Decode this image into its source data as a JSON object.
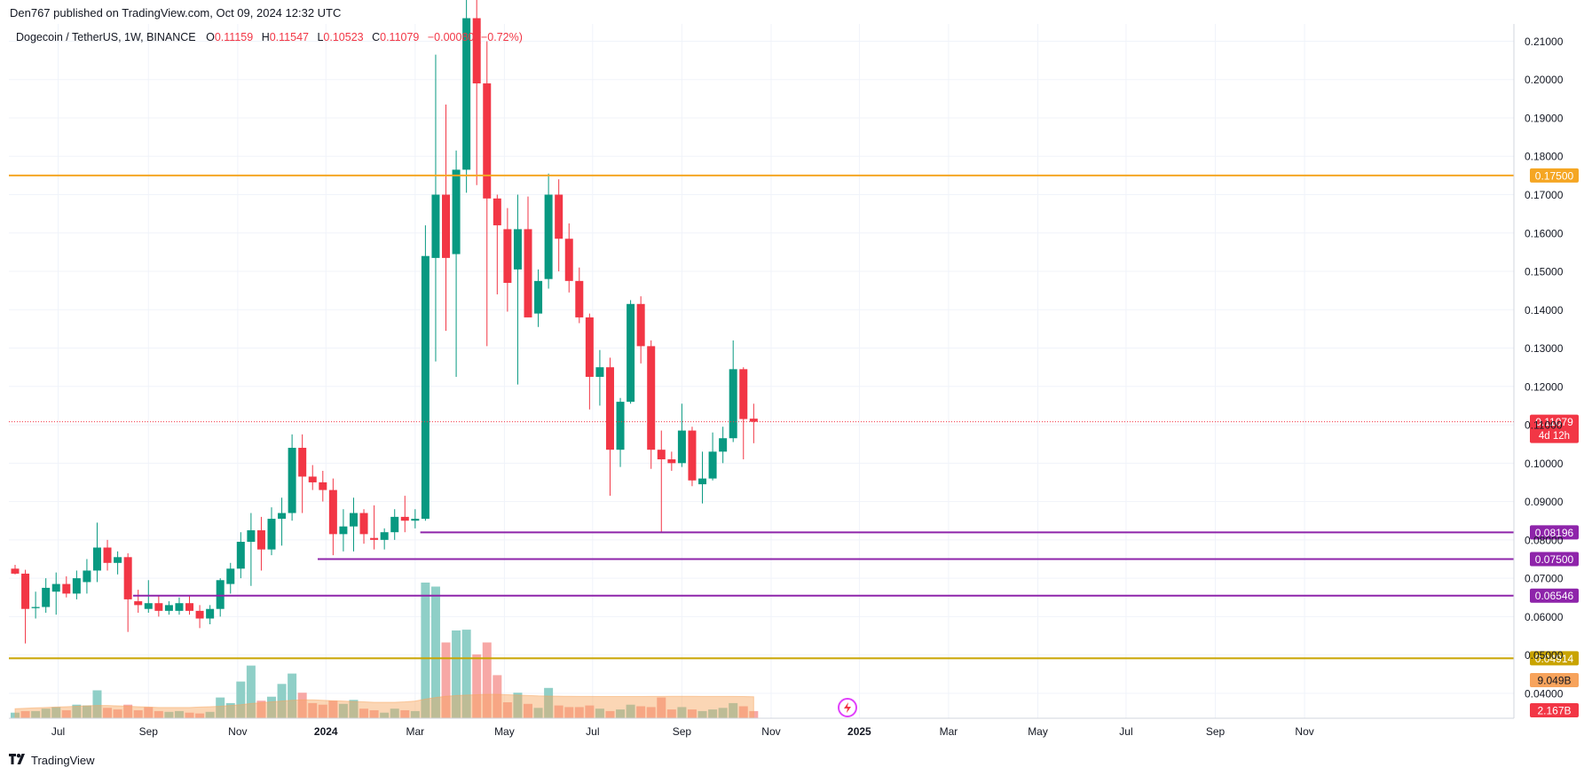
{
  "header": {
    "publisher": "Den767 published on TradingView.com, Oct 09, 2024 12:32 UTC"
  },
  "legend": {
    "symbol": "Dogecoin / TetherUS, 1W, BINANCE",
    "o_label": "O",
    "o_value": "0.11159",
    "h_label": "H",
    "h_value": "0.11547",
    "l_label": "L",
    "l_value": "0.10523",
    "c_label": "C",
    "c_value": "0.11079",
    "change": "−0.00080 (−0.72%)"
  },
  "footer": {
    "brand": "TradingView"
  },
  "chart_data": {
    "type": "candlestick",
    "interval": "1W",
    "symbol": "Dogecoin / TetherUS",
    "exchange": "BINANCE",
    "ylim": [
      0.0335,
      0.2145
    ],
    "y_ticks": [
      0.04,
      0.05,
      0.06,
      0.07,
      0.08,
      0.09,
      0.1,
      0.11,
      0.12,
      0.13,
      0.14,
      0.15,
      0.16,
      0.17,
      0.18,
      0.19,
      0.2,
      0.21
    ],
    "y_tick_labels": [
      "0.04000",
      "0.05000",
      "0.06000",
      "0.07000",
      "0.08000",
      "0.09000",
      "0.10000",
      "0.11000",
      "0.12000",
      "0.13000",
      "0.14000",
      "0.15000",
      "0.16000",
      "0.17000",
      "0.18000",
      "0.19000",
      "0.20000",
      "0.21000"
    ],
    "x_labels": [
      {
        "label": "Jul",
        "week": 4.2
      },
      {
        "label": "Sep",
        "week": 13
      },
      {
        "label": "Nov",
        "week": 21.7
      },
      {
        "label": "2024",
        "week": 30.3,
        "bold": true
      },
      {
        "label": "Mar",
        "week": 39
      },
      {
        "label": "May",
        "week": 47.7
      },
      {
        "label": "Jul",
        "week": 56.3
      },
      {
        "label": "Sep",
        "week": 65
      },
      {
        "label": "Nov",
        "week": 73.7
      },
      {
        "label": "2025",
        "week": 82.3,
        "bold": true
      },
      {
        "label": "Mar",
        "week": 91
      },
      {
        "label": "May",
        "week": 99.7
      },
      {
        "label": "Jul",
        "week": 108.3
      },
      {
        "label": "Sep",
        "week": 117
      },
      {
        "label": "Nov",
        "week": 125.7
      }
    ],
    "candles": [
      {
        "o": 0.0725,
        "h": 0.0735,
        "l": 0.071,
        "c": 0.0712
      },
      {
        "o": 0.0712,
        "h": 0.0722,
        "l": 0.053,
        "c": 0.062
      },
      {
        "o": 0.0622,
        "h": 0.0665,
        "l": 0.0595,
        "c": 0.0625
      },
      {
        "o": 0.0625,
        "h": 0.07,
        "l": 0.061,
        "c": 0.0675
      },
      {
        "o": 0.0665,
        "h": 0.0715,
        "l": 0.0605,
        "c": 0.0685
      },
      {
        "o": 0.0685,
        "h": 0.0705,
        "l": 0.065,
        "c": 0.066
      },
      {
        "o": 0.066,
        "h": 0.072,
        "l": 0.0645,
        "c": 0.07
      },
      {
        "o": 0.069,
        "h": 0.075,
        "l": 0.066,
        "c": 0.072
      },
      {
        "o": 0.072,
        "h": 0.0845,
        "l": 0.069,
        "c": 0.078
      },
      {
        "o": 0.078,
        "h": 0.08,
        "l": 0.072,
        "c": 0.074
      },
      {
        "o": 0.074,
        "h": 0.077,
        "l": 0.071,
        "c": 0.0755
      },
      {
        "o": 0.0755,
        "h": 0.0765,
        "l": 0.056,
        "c": 0.0645
      },
      {
        "o": 0.064,
        "h": 0.067,
        "l": 0.061,
        "c": 0.063
      },
      {
        "o": 0.062,
        "h": 0.0695,
        "l": 0.061,
        "c": 0.0635
      },
      {
        "o": 0.0635,
        "h": 0.0655,
        "l": 0.06,
        "c": 0.0615
      },
      {
        "o": 0.0615,
        "h": 0.064,
        "l": 0.0605,
        "c": 0.063
      },
      {
        "o": 0.0615,
        "h": 0.065,
        "l": 0.0605,
        "c": 0.0635
      },
      {
        "o": 0.0635,
        "h": 0.0655,
        "l": 0.0605,
        "c": 0.0615
      },
      {
        "o": 0.0615,
        "h": 0.063,
        "l": 0.057,
        "c": 0.0595
      },
      {
        "o": 0.0595,
        "h": 0.063,
        "l": 0.058,
        "c": 0.062
      },
      {
        "o": 0.062,
        "h": 0.07,
        "l": 0.06,
        "c": 0.0695
      },
      {
        "o": 0.0685,
        "h": 0.074,
        "l": 0.066,
        "c": 0.0725
      },
      {
        "o": 0.0725,
        "h": 0.082,
        "l": 0.07,
        "c": 0.0795
      },
      {
        "o": 0.0795,
        "h": 0.087,
        "l": 0.068,
        "c": 0.0825
      },
      {
        "o": 0.0825,
        "h": 0.086,
        "l": 0.072,
        "c": 0.0775
      },
      {
        "o": 0.0775,
        "h": 0.0885,
        "l": 0.076,
        "c": 0.0855
      },
      {
        "o": 0.0855,
        "h": 0.091,
        "l": 0.0785,
        "c": 0.087
      },
      {
        "o": 0.087,
        "h": 0.1075,
        "l": 0.085,
        "c": 0.104
      },
      {
        "o": 0.104,
        "h": 0.1075,
        "l": 0.087,
        "c": 0.0965
      },
      {
        "o": 0.0965,
        "h": 0.0995,
        "l": 0.093,
        "c": 0.095
      },
      {
        "o": 0.095,
        "h": 0.098,
        "l": 0.09,
        "c": 0.093
      },
      {
        "o": 0.093,
        "h": 0.096,
        "l": 0.076,
        "c": 0.0815
      },
      {
        "o": 0.0815,
        "h": 0.088,
        "l": 0.077,
        "c": 0.0835
      },
      {
        "o": 0.0835,
        "h": 0.091,
        "l": 0.077,
        "c": 0.087
      },
      {
        "o": 0.087,
        "h": 0.088,
        "l": 0.079,
        "c": 0.0815
      },
      {
        "o": 0.0805,
        "h": 0.089,
        "l": 0.0775,
        "c": 0.08
      },
      {
        "o": 0.08,
        "h": 0.083,
        "l": 0.0775,
        "c": 0.082
      },
      {
        "o": 0.082,
        "h": 0.088,
        "l": 0.08,
        "c": 0.086
      },
      {
        "o": 0.086,
        "h": 0.0915,
        "l": 0.082,
        "c": 0.085
      },
      {
        "o": 0.085,
        "h": 0.088,
        "l": 0.083,
        "c": 0.0855
      },
      {
        "o": 0.0855,
        "h": 0.162,
        "l": 0.085,
        "c": 0.154
      },
      {
        "o": 0.1535,
        "h": 0.2065,
        "l": 0.1265,
        "c": 0.17
      },
      {
        "o": 0.17,
        "h": 0.1935,
        "l": 0.1345,
        "c": 0.1535
      },
      {
        "o": 0.1545,
        "h": 0.1815,
        "l": 0.1225,
        "c": 0.1765
      },
      {
        "o": 0.1765,
        "h": 0.222,
        "l": 0.1705,
        "c": 0.216
      },
      {
        "o": 0.216,
        "h": 0.229,
        "l": 0.1725,
        "c": 0.199
      },
      {
        "o": 0.199,
        "h": 0.21,
        "l": 0.1305,
        "c": 0.169
      },
      {
        "o": 0.169,
        "h": 0.17,
        "l": 0.144,
        "c": 0.162
      },
      {
        "o": 0.161,
        "h": 0.1665,
        "l": 0.1395,
        "c": 0.147
      },
      {
        "o": 0.1505,
        "h": 0.17,
        "l": 0.1205,
        "c": 0.161
      },
      {
        "o": 0.161,
        "h": 0.1695,
        "l": 0.138,
        "c": 0.138
      },
      {
        "o": 0.139,
        "h": 0.1505,
        "l": 0.1355,
        "c": 0.1475
      },
      {
        "o": 0.148,
        "h": 0.1755,
        "l": 0.1455,
        "c": 0.17
      },
      {
        "o": 0.17,
        "h": 0.174,
        "l": 0.15,
        "c": 0.1585
      },
      {
        "o": 0.1585,
        "h": 0.1625,
        "l": 0.1445,
        "c": 0.1475
      },
      {
        "o": 0.1475,
        "h": 0.151,
        "l": 0.1365,
        "c": 0.138
      },
      {
        "o": 0.138,
        "h": 0.139,
        "l": 0.114,
        "c": 0.1225
      },
      {
        "o": 0.1225,
        "h": 0.1295,
        "l": 0.115,
        "c": 0.125
      },
      {
        "o": 0.125,
        "h": 0.1275,
        "l": 0.0915,
        "c": 0.1035
      },
      {
        "o": 0.1035,
        "h": 0.117,
        "l": 0.099,
        "c": 0.116
      },
      {
        "o": 0.116,
        "h": 0.1425,
        "l": 0.1155,
        "c": 0.1415
      },
      {
        "o": 0.1415,
        "h": 0.1435,
        "l": 0.126,
        "c": 0.1305
      },
      {
        "o": 0.1305,
        "h": 0.132,
        "l": 0.0985,
        "c": 0.1035
      },
      {
        "o": 0.1035,
        "h": 0.1085,
        "l": 0.082,
        "c": 0.101
      },
      {
        "o": 0.101,
        "h": 0.103,
        "l": 0.098,
        "c": 0.1
      },
      {
        "o": 0.1,
        "h": 0.1155,
        "l": 0.099,
        "c": 0.1085
      },
      {
        "o": 0.1085,
        "h": 0.1095,
        "l": 0.094,
        "c": 0.0955
      },
      {
        "o": 0.0945,
        "h": 0.103,
        "l": 0.0895,
        "c": 0.096
      },
      {
        "o": 0.096,
        "h": 0.108,
        "l": 0.0955,
        "c": 0.103
      },
      {
        "o": 0.103,
        "h": 0.1095,
        "l": 0.1,
        "c": 0.1065
      },
      {
        "o": 0.1065,
        "h": 0.132,
        "l": 0.1055,
        "c": 0.1245
      },
      {
        "o": 0.1245,
        "h": 0.125,
        "l": 0.101,
        "c": 0.1115
      },
      {
        "o": 0.1116,
        "h": 0.1155,
        "l": 0.1052,
        "c": 0.1108
      }
    ],
    "volumes": [
      {
        "v": 0.7,
        "up": true
      },
      {
        "v": 0.9,
        "up": false
      },
      {
        "v": 0.9,
        "up": true
      },
      {
        "v": 1.2,
        "up": true
      },
      {
        "v": 1.4,
        "up": true
      },
      {
        "v": 1.0,
        "up": false
      },
      {
        "v": 1.7,
        "up": true
      },
      {
        "v": 1.6,
        "up": true
      },
      {
        "v": 3.5,
        "up": true
      },
      {
        "v": 1.3,
        "up": false
      },
      {
        "v": 1.1,
        "up": false
      },
      {
        "v": 1.7,
        "up": false
      },
      {
        "v": 1.0,
        "up": false
      },
      {
        "v": 1.4,
        "up": false
      },
      {
        "v": 0.9,
        "up": false
      },
      {
        "v": 0.8,
        "up": true
      },
      {
        "v": 0.9,
        "up": true
      },
      {
        "v": 0.7,
        "up": false
      },
      {
        "v": 0.6,
        "up": false
      },
      {
        "v": 0.8,
        "up": true
      },
      {
        "v": 2.6,
        "up": true
      },
      {
        "v": 1.9,
        "up": true
      },
      {
        "v": 4.6,
        "up": true
      },
      {
        "v": 6.6,
        "up": true
      },
      {
        "v": 2.2,
        "up": false
      },
      {
        "v": 2.7,
        "up": true
      },
      {
        "v": 4.3,
        "up": true
      },
      {
        "v": 5.6,
        "up": true
      },
      {
        "v": 3.2,
        "up": false
      },
      {
        "v": 1.9,
        "up": false
      },
      {
        "v": 1.7,
        "up": false
      },
      {
        "v": 2.2,
        "up": false
      },
      {
        "v": 1.8,
        "up": true
      },
      {
        "v": 2.3,
        "up": true
      },
      {
        "v": 1.2,
        "up": false
      },
      {
        "v": 1.0,
        "up": false
      },
      {
        "v": 0.7,
        "up": true
      },
      {
        "v": 1.2,
        "up": true
      },
      {
        "v": 1.0,
        "up": false
      },
      {
        "v": 0.9,
        "up": true
      },
      {
        "v": 17.0,
        "up": true
      },
      {
        "v": 16.5,
        "up": true
      },
      {
        "v": 9.5,
        "up": false
      },
      {
        "v": 11.0,
        "up": true
      },
      {
        "v": 11.1,
        "up": true
      },
      {
        "v": 8.0,
        "up": false
      },
      {
        "v": 9.5,
        "up": false
      },
      {
        "v": 5.4,
        "up": false
      },
      {
        "v": 2.0,
        "up": false
      },
      {
        "v": 3.2,
        "up": true
      },
      {
        "v": 1.8,
        "up": false
      },
      {
        "v": 1.3,
        "up": true
      },
      {
        "v": 3.8,
        "up": true
      },
      {
        "v": 1.6,
        "up": false
      },
      {
        "v": 1.4,
        "up": false
      },
      {
        "v": 1.4,
        "up": false
      },
      {
        "v": 1.6,
        "up": false
      },
      {
        "v": 1.2,
        "up": true
      },
      {
        "v": 0.9,
        "up": false
      },
      {
        "v": 1.1,
        "up": true
      },
      {
        "v": 1.7,
        "up": true
      },
      {
        "v": 1.5,
        "up": false
      },
      {
        "v": 1.4,
        "up": false
      },
      {
        "v": 2.6,
        "up": false
      },
      {
        "v": 1.1,
        "up": false
      },
      {
        "v": 1.4,
        "up": true
      },
      {
        "v": 1.1,
        "up": false
      },
      {
        "v": 0.9,
        "up": true
      },
      {
        "v": 1.1,
        "up": true
      },
      {
        "v": 1.3,
        "up": true
      },
      {
        "v": 1.9,
        "up": true
      },
      {
        "v": 1.5,
        "up": false
      },
      {
        "v": 0.9,
        "up": false
      }
    ],
    "volume_ma": [
      1.2,
      1.25,
      1.3,
      1.35,
      1.4,
      1.45,
      1.5,
      1.55,
      1.6,
      1.6,
      1.55,
      1.5,
      1.45,
      1.4,
      1.35,
      1.35,
      1.35,
      1.35,
      1.4,
      1.45,
      1.5,
      1.6,
      1.7,
      1.85,
      1.95,
      2.05,
      2.15,
      2.25,
      2.3,
      2.3,
      2.25,
      2.2,
      2.15,
      2.1,
      2.05,
      2.0,
      2.0,
      2.0,
      2.05,
      2.15,
      2.4,
      2.6,
      2.75,
      2.85,
      2.9,
      2.95,
      3.0,
      3.0,
      2.95,
      2.9,
      2.85,
      2.8,
      2.78,
      2.76,
      2.75,
      2.74,
      2.73,
      2.72,
      2.72,
      2.72,
      2.72,
      2.72,
      2.73,
      2.74,
      2.75,
      2.75,
      2.75,
      2.74,
      2.74,
      2.74,
      2.73,
      2.72,
      2.7
    ],
    "price_levels": [
      {
        "value": 0.175,
        "label": "0.17500",
        "color": "#f5a623",
        "start_week": -1
      },
      {
        "value": 0.08196,
        "label": "0.08196",
        "color": "#8e24aa",
        "start_week": 39.5
      },
      {
        "value": 0.075,
        "label": "0.07500",
        "color": "#8e24aa",
        "start_week": 29.5
      },
      {
        "value": 0.06546,
        "label": "0.06546",
        "color": "#8e24aa",
        "start_week": 11.5
      },
      {
        "value": 0.04914,
        "label": "0.04914",
        "color": "#c9a400",
        "start_week": -1
      }
    ],
    "current_price": {
      "value": 0.11079,
      "label": "0.11079",
      "countdown": "4d 12h",
      "color": "#f23645"
    },
    "volume_labels": [
      {
        "label": "9.049B",
        "color": "#f7a35c"
      },
      {
        "label": "2.167B",
        "color": "#f23645"
      }
    ],
    "colors": {
      "up": "#089981",
      "down": "#f23645",
      "vol_up": "#8fcfc7",
      "vol_down": "#f7a8a6",
      "grid": "#f0f3fa",
      "axis_text": "#131722"
    }
  }
}
